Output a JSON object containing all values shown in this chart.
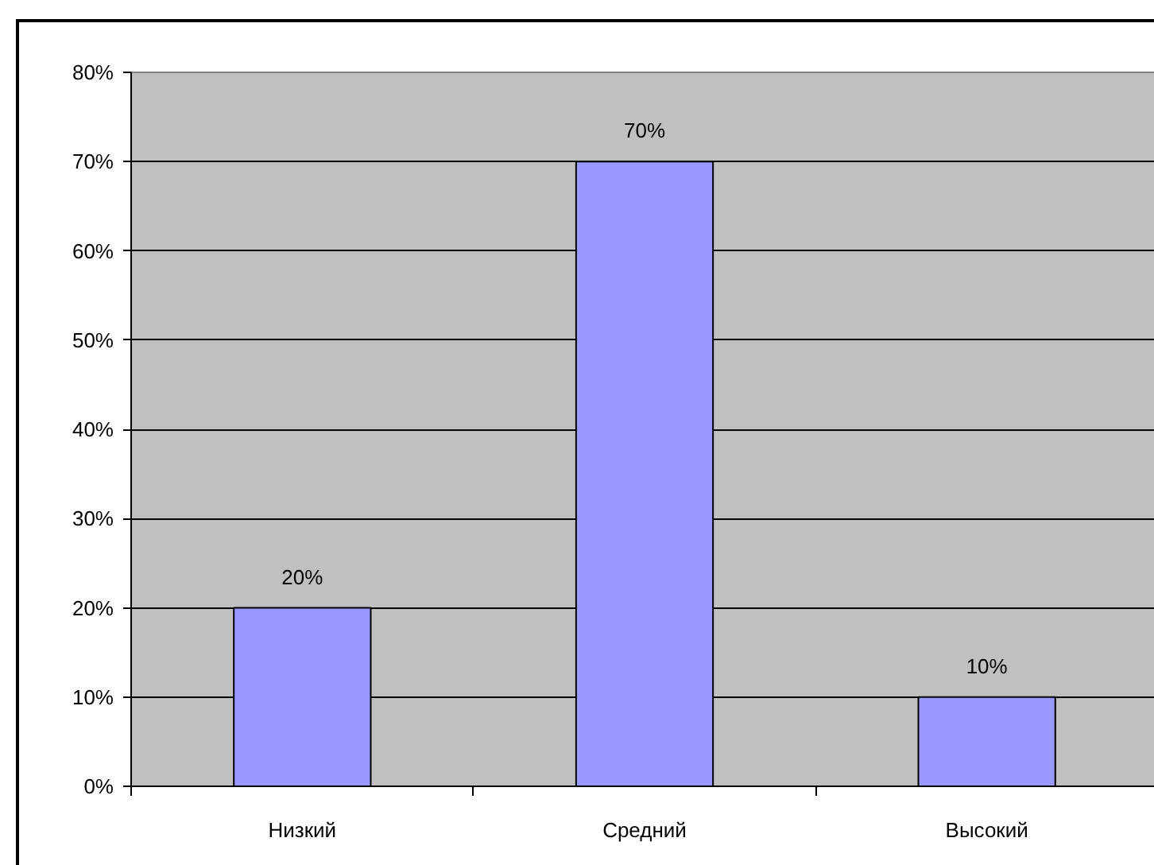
{
  "chart_data": {
    "type": "bar",
    "categories": [
      "Низкий",
      "Средний",
      "Высокий"
    ],
    "values": [
      20,
      70,
      10
    ],
    "color": "#9999ff",
    "value_labels": [
      "20%",
      "70%",
      "10%"
    ],
    "ylim": [
      0,
      80
    ],
    "yticks": [
      {
        "value": 0,
        "label": "0%"
      },
      {
        "value": 10,
        "label": "10%"
      },
      {
        "value": 20,
        "label": "20%"
      },
      {
        "value": 30,
        "label": "30%"
      },
      {
        "value": 40,
        "label": "40%"
      },
      {
        "value": 50,
        "label": "50%"
      },
      {
        "value": 60,
        "label": "60%"
      },
      {
        "value": 70,
        "label": "70%"
      },
      {
        "value": 80,
        "label": "80%"
      }
    ],
    "grid": "y"
  }
}
